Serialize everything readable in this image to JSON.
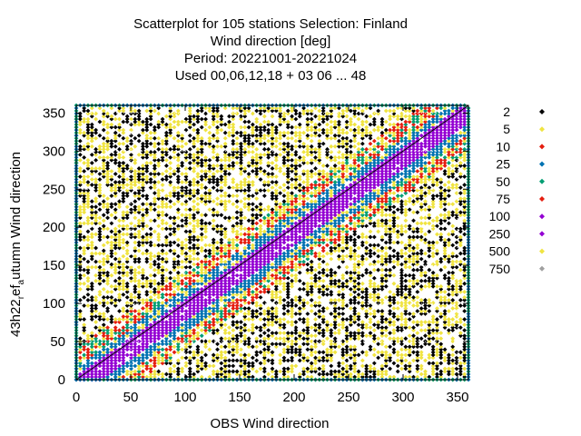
{
  "title_lines": [
    "Scatterplot for  105 stations Selection: Finland",
    "Wind direction [deg]",
    "Period: 20221001-20221024",
    "Used  00,06,12,18  + 03 06 ... 48"
  ],
  "chart_data": {
    "type": "scatter",
    "xlabel": "OBS Wind direction",
    "ylabel": "43h22 ref a utumn Wind direction",
    "xlim": [
      0,
      360
    ],
    "ylim": [
      0,
      360
    ],
    "xticks": [
      0,
      50,
      100,
      150,
      200,
      250,
      300,
      350
    ],
    "yticks": [
      0,
      50,
      100,
      150,
      200,
      250,
      300,
      350
    ],
    "grid": true,
    "legend_placement": "right",
    "diagonal_reference_line": true,
    "density_classes": [
      {
        "label": "2",
        "color": "#000000"
      },
      {
        "label": "5",
        "color": "#f0e442"
      },
      {
        "label": "10",
        "color": "#e51e10"
      },
      {
        "label": "25",
        "color": "#0072b2"
      },
      {
        "label": "50",
        "color": "#009e73"
      },
      {
        "label": "75",
        "color": "#e51e10"
      },
      {
        "label": "100",
        "color": "#9400d3"
      },
      {
        "label": "250",
        "color": "#9400d3"
      },
      {
        "label": "500",
        "color": "#f0e442"
      },
      {
        "label": "750",
        "color": "#a0a0a0"
      }
    ],
    "description_bands": {
      "core_offset_deg": 10,
      "core_class": "100",
      "mid_class": "25",
      "outer_class": "10",
      "background_class": "2"
    }
  },
  "ylabel_parts": {
    "main1": "43h22",
    "sub1": "r",
    "mid": "ef",
    "sub2": "a",
    "main2": "utumn Wind direction"
  }
}
